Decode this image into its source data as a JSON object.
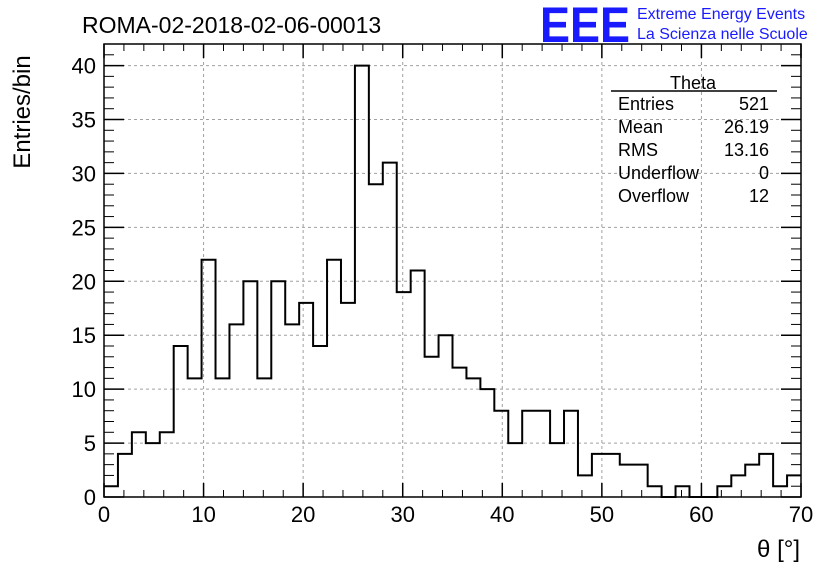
{
  "header": {
    "run_title": "ROMA-02-2018-02-06-00013",
    "logo_mark": "EEE",
    "logo_line1": "Extreme Energy Events",
    "logo_line2": "La Scienza nelle Scuole"
  },
  "stats": {
    "name": "Theta",
    "rows": [
      {
        "label": "Entries",
        "value": "521"
      },
      {
        "label": "Mean",
        "value": "26.19"
      },
      {
        "label": "RMS",
        "value": "13.16"
      },
      {
        "label": "Underflow",
        "value": "0"
      },
      {
        "label": "Overflow",
        "value": "12"
      }
    ]
  },
  "colors": {
    "line": "#000000",
    "grid": "#a0a0a0",
    "logo": "#1a1aff"
  },
  "chart_data": {
    "type": "bar",
    "title": "ROMA-02-2018-02-06-00013",
    "xlabel": "θ [°]",
    "ylabel": "Entries/bin",
    "xlim": [
      0,
      70
    ],
    "ylim": [
      0,
      42
    ],
    "grid": true,
    "bin_width": 1.4,
    "x_ticks": [
      0,
      10,
      20,
      30,
      40,
      50,
      60,
      70
    ],
    "y_ticks": [
      0,
      5,
      10,
      15,
      20,
      25,
      30,
      35,
      40
    ],
    "values": [
      1,
      4,
      6,
      5,
      6,
      14,
      11,
      22,
      11,
      16,
      20,
      11,
      20,
      16,
      18,
      14,
      22,
      18,
      40,
      29,
      31,
      19,
      21,
      13,
      15,
      12,
      11,
      10,
      8,
      5,
      8,
      8,
      5,
      8,
      2,
      4,
      4,
      3,
      3,
      1,
      0,
      1,
      0,
      0,
      1,
      2,
      3,
      4,
      1,
      2
    ]
  }
}
